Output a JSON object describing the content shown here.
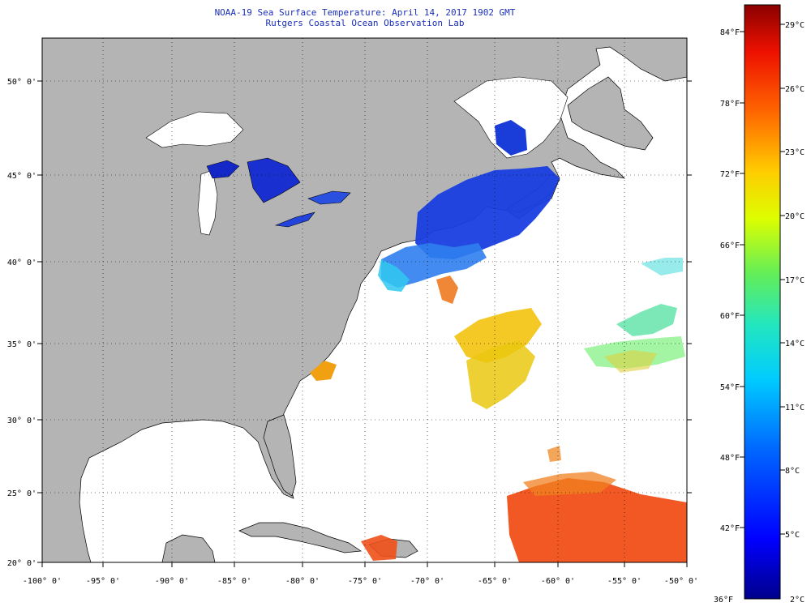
{
  "title": {
    "line1": "NOAA-19 Sea Surface Temperature:  April 14, 2017 1902 GMT",
    "line2": "Rutgers Coastal Ocean Observation Lab"
  },
  "map": {
    "lon_labels": [
      "-100° 0'",
      "-95° 0'",
      "-90° 0'",
      "-85° 0'",
      "-80° 0'",
      "-75° 0'",
      "-70° 0'",
      "-65° 0'",
      "-60° 0'",
      "-55° 0'",
      "-50° 0'"
    ],
    "lat_labels": [
      "50° 0'",
      "45° 0'",
      "40° 0'",
      "35° 0'",
      "30° 0'",
      "25° 0'",
      "20° 0'"
    ],
    "land_color": "#b4b4b4",
    "ocean_color": "#ffffff"
  },
  "colorbar": {
    "celsius_labels": [
      "29°C",
      "26°C",
      "23°C",
      "20°C",
      "17°C",
      "14°C",
      "11°C",
      "8°C",
      "5°C",
      "2°C"
    ],
    "fahrenheit_labels": [
      "84°F",
      "78°F",
      "72°F",
      "66°F",
      "60°F",
      "54°F",
      "48°F",
      "42°F",
      "36°F"
    ],
    "min_color": "#00008b",
    "max_color": "#8b0000"
  }
}
